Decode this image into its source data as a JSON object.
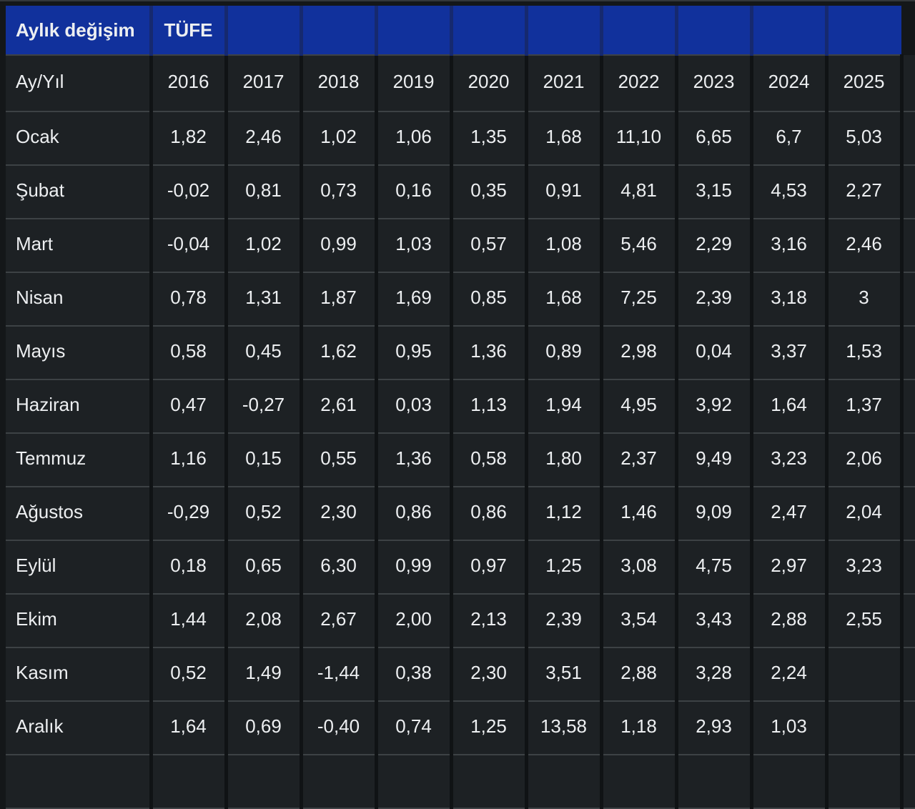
{
  "table": {
    "title": "Aylık değişim",
    "dataset_label": "TÜFE",
    "year_row_label": "Ay/Yıl",
    "years": [
      "2016",
      "2017",
      "2018",
      "2019",
      "2020",
      "2021",
      "2022",
      "2023",
      "2024",
      "2025"
    ],
    "rows": [
      {
        "month": "Ocak",
        "values": [
          "1,82",
          "2,46",
          "1,02",
          "1,06",
          "1,35",
          "1,68",
          "11,10",
          "6,65",
          "6,7",
          "5,03"
        ]
      },
      {
        "month": "Şubat",
        "values": [
          "-0,02",
          "0,81",
          "0,73",
          "0,16",
          "0,35",
          "0,91",
          "4,81",
          "3,15",
          "4,53",
          "2,27"
        ]
      },
      {
        "month": "Mart",
        "values": [
          "-0,04",
          "1,02",
          "0,99",
          "1,03",
          "0,57",
          "1,08",
          "5,46",
          "2,29",
          "3,16",
          "2,46"
        ]
      },
      {
        "month": "Nisan",
        "values": [
          "0,78",
          "1,31",
          "1,87",
          "1,69",
          "0,85",
          "1,68",
          "7,25",
          "2,39",
          "3,18",
          "3"
        ]
      },
      {
        "month": "Mayıs",
        "values": [
          "0,58",
          "0,45",
          "1,62",
          "0,95",
          "1,36",
          "0,89",
          "2,98",
          "0,04",
          "3,37",
          "1,53"
        ]
      },
      {
        "month": "Haziran",
        "values": [
          "0,47",
          "-0,27",
          "2,61",
          "0,03",
          "1,13",
          "1,94",
          "4,95",
          "3,92",
          "1,64",
          "1,37"
        ]
      },
      {
        "month": "Temmuz",
        "values": [
          "1,16",
          "0,15",
          "0,55",
          "1,36",
          "0,58",
          "1,80",
          "2,37",
          "9,49",
          "3,23",
          "2,06"
        ]
      },
      {
        "month": "Ağustos",
        "values": [
          "-0,29",
          "0,52",
          "2,30",
          "0,86",
          "0,86",
          "1,12",
          "1,46",
          "9,09",
          "2,47",
          "2,04"
        ]
      },
      {
        "month": "Eylül",
        "values": [
          "0,18",
          "0,65",
          "6,30",
          "0,99",
          "0,97",
          "1,25",
          "3,08",
          "4,75",
          "2,97",
          "3,23"
        ]
      },
      {
        "month": "Ekim",
        "values": [
          "1,44",
          "2,08",
          "2,67",
          "2,00",
          "2,13",
          "2,39",
          "3,54",
          "3,43",
          "2,88",
          "2,55"
        ]
      },
      {
        "month": "Kasım",
        "values": [
          "0,52",
          "1,49",
          "-1,44",
          "0,38",
          "2,30",
          "3,51",
          "2,88",
          "3,28",
          "2,24",
          ""
        ]
      },
      {
        "month": "Aralık",
        "values": [
          "1,64",
          "0,69",
          "-0,40",
          "0,74",
          "1,25",
          "13,58",
          "1,18",
          "2,93",
          "1,03",
          ""
        ]
      }
    ]
  },
  "chart_data": {
    "type": "table",
    "title": "Aylık değişim TÜFE",
    "categories": [
      "Ocak",
      "Şubat",
      "Mart",
      "Nisan",
      "Mayıs",
      "Haziran",
      "Temmuz",
      "Ağustos",
      "Eylül",
      "Ekim",
      "Kasım",
      "Aralık"
    ],
    "series": [
      {
        "name": "2016",
        "values": [
          1.82,
          -0.02,
          -0.04,
          0.78,
          0.58,
          0.47,
          1.16,
          -0.29,
          0.18,
          1.44,
          0.52,
          1.64
        ]
      },
      {
        "name": "2017",
        "values": [
          2.46,
          0.81,
          1.02,
          1.31,
          0.45,
          -0.27,
          0.15,
          0.52,
          0.65,
          2.08,
          1.49,
          0.69
        ]
      },
      {
        "name": "2018",
        "values": [
          1.02,
          0.73,
          0.99,
          1.87,
          1.62,
          2.61,
          0.55,
          2.3,
          6.3,
          2.67,
          -1.44,
          -0.4
        ]
      },
      {
        "name": "2019",
        "values": [
          1.06,
          0.16,
          1.03,
          1.69,
          0.95,
          0.03,
          1.36,
          0.86,
          0.99,
          2.0,
          0.38,
          0.74
        ]
      },
      {
        "name": "2020",
        "values": [
          1.35,
          0.35,
          0.57,
          0.85,
          1.36,
          1.13,
          0.58,
          0.86,
          0.97,
          2.13,
          2.3,
          1.25
        ]
      },
      {
        "name": "2021",
        "values": [
          1.68,
          0.91,
          1.08,
          1.68,
          0.89,
          1.94,
          1.8,
          1.12,
          1.25,
          2.39,
          3.51,
          13.58
        ]
      },
      {
        "name": "2022",
        "values": [
          11.1,
          4.81,
          5.46,
          7.25,
          2.98,
          4.95,
          2.37,
          1.46,
          3.08,
          3.54,
          2.88,
          1.18
        ]
      },
      {
        "name": "2023",
        "values": [
          6.65,
          3.15,
          2.29,
          2.39,
          0.04,
          3.92,
          9.49,
          9.09,
          4.75,
          3.43,
          3.28,
          2.93
        ]
      },
      {
        "name": "2024",
        "values": [
          6.7,
          4.53,
          3.16,
          3.18,
          3.37,
          1.64,
          3.23,
          2.47,
          2.97,
          2.88,
          2.24,
          1.03
        ]
      },
      {
        "name": "2025",
        "values": [
          5.03,
          2.27,
          2.46,
          3,
          1.53,
          1.37,
          2.06,
          2.04,
          3.23,
          2.55,
          null,
          null
        ]
      }
    ]
  },
  "colors": {
    "header_bg": "#11319c",
    "cell_bg": "#1d2124",
    "page_bg": "#141719",
    "row_border": "#3d4245",
    "col_border": "#101315",
    "text": "#edeff1"
  }
}
